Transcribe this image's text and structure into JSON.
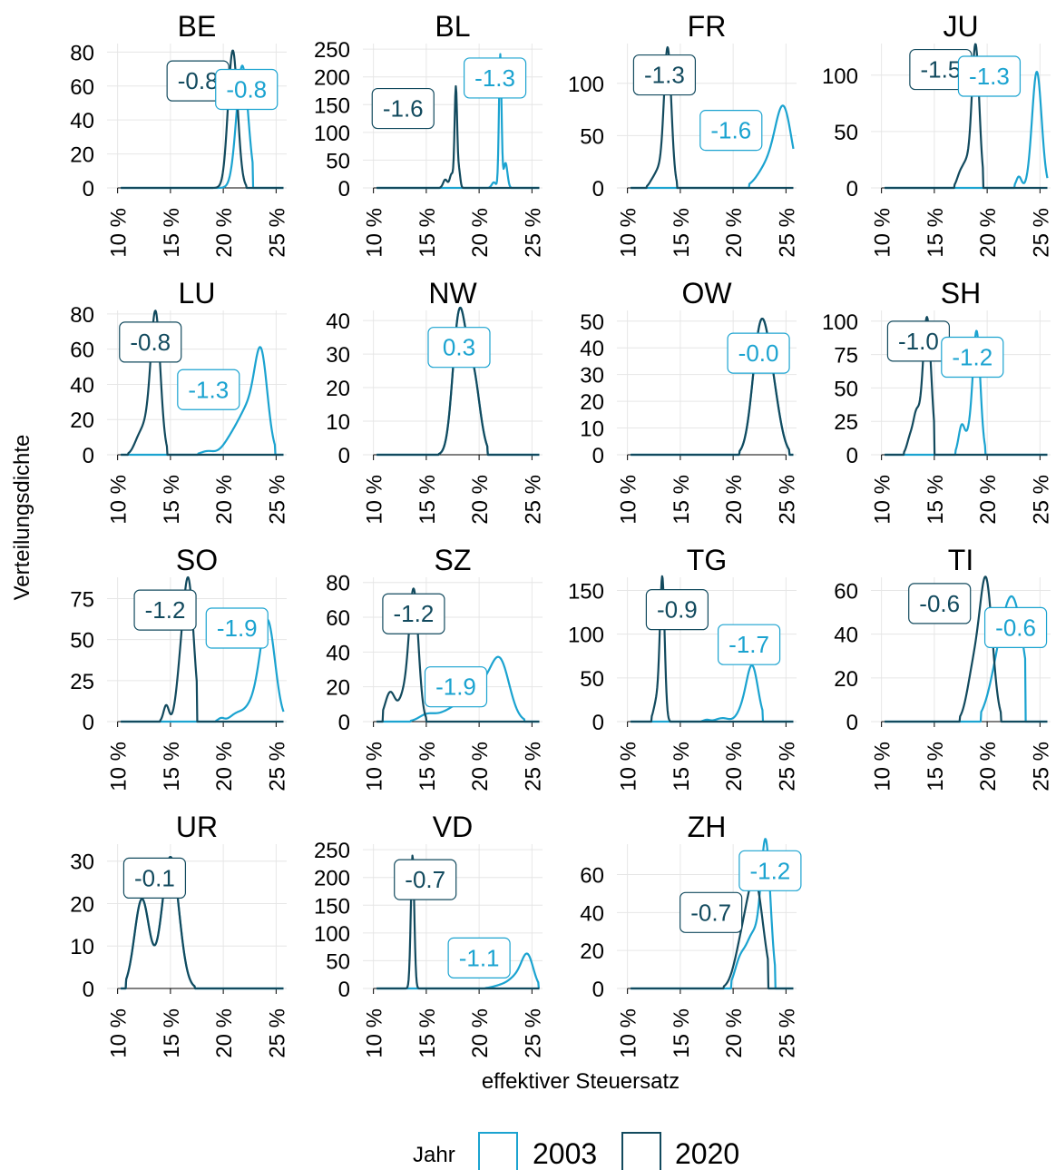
{
  "chart_data": {
    "type": "line",
    "subtype": "density-small-multiples",
    "xlabel": "effektiver Steuersatz",
    "ylabel": "Verteilungsdichte",
    "xlim": [
      9,
      26
    ],
    "x_ticks": [
      10,
      15,
      20,
      25
    ],
    "x_tick_labels": [
      "10 %",
      "15 %",
      "20 %",
      "25 %"
    ],
    "legend": {
      "title": "Jahr",
      "position": "bottom",
      "entries": [
        {
          "label": "2003",
          "color": "#1ba3d0"
        },
        {
          "label": "2020",
          "color": "#124a5e"
        }
      ]
    },
    "grid": true,
    "panels": [
      {
        "title": "BE",
        "yticks": [
          0,
          20,
          40,
          60,
          80
        ],
        "ymax": 85,
        "series": [
          {
            "year": "2003",
            "peaks": [
              [
                21.8,
                72,
                0.55
              ]
            ],
            "start": 19.4,
            "end": 22.8
          },
          {
            "year": "2020",
            "peaks": [
              [
                20.9,
                81,
                0.45
              ]
            ],
            "start": 19.0,
            "end": 22.2
          }
        ],
        "labels": [
          {
            "text": "-0.8",
            "year": "2020",
            "x": 17.6,
            "y": 63
          },
          {
            "text": "-0.8",
            "year": "2003",
            "x": 22.2,
            "y": 58
          }
        ]
      },
      {
        "title": "BL",
        "yticks": [
          0,
          50,
          100,
          150,
          200,
          250
        ],
        "ymax": 260,
        "series": [
          {
            "year": "2003",
            "peaks": [
              [
                22.0,
                240,
                0.12
              ],
              [
                22.5,
                45,
                0.18
              ],
              [
                21.4,
                10,
                0.2
              ]
            ],
            "start": 20.8,
            "end": 23.0
          },
          {
            "year": "2020",
            "peaks": [
              [
                17.8,
                180,
                0.12
              ],
              [
                17.4,
                25,
                0.18
              ],
              [
                16.8,
                15,
                0.2
              ],
              [
                18.1,
                30,
                0.12
              ]
            ],
            "start": 16.3,
            "end": 18.5
          }
        ],
        "labels": [
          {
            "text": "-1.6",
            "year": "2020",
            "x": 12.8,
            "y": 143
          },
          {
            "text": "-1.3",
            "year": "2003",
            "x": 21.5,
            "y": 198
          }
        ]
      },
      {
        "title": "FR",
        "yticks": [
          0,
          50,
          100
        ],
        "ymax": 138,
        "series": [
          {
            "year": "2003",
            "peaks": [
              [
                24.8,
                58,
                0.75
              ],
              [
                24.0,
                25,
                1.2
              ],
              [
                22.8,
                4,
                0.7
              ]
            ],
            "start": 21.5,
            "end": 25.8
          },
          {
            "year": "2020",
            "peaks": [
              [
                13.8,
                134,
                0.35
              ],
              [
                12.9,
                15,
                0.35
              ],
              [
                12.3,
                5,
                0.3
              ]
            ],
            "start": 11.8,
            "end": 14.7
          }
        ],
        "labels": [
          {
            "text": "-1.3",
            "year": "2020",
            "x": 13.5,
            "y": 108
          },
          {
            "text": "-1.6",
            "year": "2003",
            "x": 19.8,
            "y": 55
          }
        ]
      },
      {
        "title": "JU",
        "yticks": [
          0,
          50,
          100
        ],
        "ymax": 128,
        "series": [
          {
            "year": "2003",
            "peaks": [
              [
                24.7,
                103,
                0.45
              ],
              [
                23.0,
                10,
                0.25
              ]
            ],
            "start": 22.6,
            "end": 25.8
          },
          {
            "year": "2020",
            "peaks": [
              [
                18.9,
                127,
                0.35
              ],
              [
                18.0,
                20,
                0.35
              ],
              [
                17.4,
                10,
                0.3
              ]
            ],
            "start": 16.9,
            "end": 19.6
          }
        ],
        "labels": [
          {
            "text": "-1.5",
            "year": "2020",
            "x": 15.6,
            "y": 105
          },
          {
            "text": "-1.3",
            "year": "2003",
            "x": 20.2,
            "y": 99
          }
        ]
      },
      {
        "title": "LU",
        "yticks": [
          0,
          20,
          40,
          60,
          80
        ],
        "ymax": 82,
        "series": [
          {
            "year": "2003",
            "peaks": [
              [
                23.6,
                50,
                0.6
              ],
              [
                22.4,
                25,
                0.9
              ],
              [
                20.8,
                8,
                0.8
              ],
              [
                18.5,
                2,
                0.6
              ]
            ],
            "start": 17.6,
            "end": 24.9
          },
          {
            "year": "2020",
            "peaks": [
              [
                13.6,
                78,
                0.45
              ],
              [
                12.6,
                15,
                0.6
              ],
              [
                11.8,
                3,
                0.4
              ]
            ],
            "start": 11.0,
            "end": 14.7
          }
        ],
        "labels": [
          {
            "text": "-0.8",
            "year": "2020",
            "x": 13.1,
            "y": 64
          },
          {
            "text": "-1.3",
            "year": "2003",
            "x": 18.6,
            "y": 37
          }
        ]
      },
      {
        "title": "NW",
        "yticks": [
          0,
          10,
          20,
          30,
          40
        ],
        "ymax": 43,
        "series": [
          {
            "year": "2003",
            "peaks": [
              [
                18.1,
                40,
                0.6
              ],
              [
                19.4,
                24,
                0.65
              ]
            ],
            "start": 16.2,
            "end": 20.8
          },
          {
            "year": "2020",
            "peaks": [
              [
                18.1,
                40,
                0.6
              ],
              [
                19.4,
                24,
                0.65
              ]
            ],
            "start": 16.2,
            "end": 20.8
          }
        ],
        "labels": [
          {
            "text": "0.3",
            "year": "2003",
            "x": 18.1,
            "y": 32
          }
        ]
      },
      {
        "title": "OW",
        "yticks": [
          0,
          10,
          20,
          30,
          40,
          50
        ],
        "ymax": 54,
        "series": [
          {
            "year": "2003",
            "peaks": [
              [
                22.6,
                46,
                0.75
              ],
              [
                23.8,
                18,
                0.7
              ]
            ],
            "start": 20.6,
            "end": 25.3
          },
          {
            "year": "2020",
            "peaks": [
              [
                22.6,
                46,
                0.75
              ],
              [
                23.8,
                18,
                0.7
              ]
            ],
            "start": 20.6,
            "end": 25.3
          }
        ],
        "labels": [
          {
            "text": "-0.0",
            "year": "2003",
            "x": 22.4,
            "y": 38
          }
        ]
      },
      {
        "title": "SH",
        "yticks": [
          0,
          25,
          50,
          75,
          100
        ],
        "ymax": 108,
        "series": [
          {
            "year": "2003",
            "peaks": [
              [
                19.0,
                92,
                0.35
              ],
              [
                17.6,
                22,
                0.3
              ],
              [
                18.3,
                12,
                0.3
              ]
            ],
            "start": 17.0,
            "end": 19.8
          },
          {
            "year": "2020",
            "peaks": [
              [
                14.3,
                103,
                0.4
              ],
              [
                13.3,
                28,
                0.3
              ],
              [
                12.7,
                12,
                0.3
              ]
            ],
            "start": 12.1,
            "end": 15.0
          }
        ],
        "labels": [
          {
            "text": "-1.0",
            "year": "2020",
            "x": 13.5,
            "y": 85
          },
          {
            "text": "-1.2",
            "year": "2003",
            "x": 18.6,
            "y": 73
          }
        ]
      },
      {
        "title": "SO",
        "yticks": [
          0,
          25,
          50,
          75
        ],
        "ymax": 88,
        "series": [
          {
            "year": "2003",
            "peaks": [
              [
                24.2,
                60,
                0.7
              ],
              [
                22.8,
                10,
                0.8
              ],
              [
                21.2,
                4,
                0.6
              ],
              [
                19.8,
                2,
                0.3
              ]
            ],
            "start": 19.3,
            "end": 25.9
          },
          {
            "year": "2020",
            "peaks": [
              [
                16.7,
                85,
                0.5
              ],
              [
                15.9,
                20,
                0.4
              ],
              [
                14.6,
                10,
                0.25
              ]
            ],
            "start": 14.0,
            "end": 17.5
          }
        ],
        "labels": [
          {
            "text": "-1.2",
            "year": "2020",
            "x": 14.5,
            "y": 68
          },
          {
            "text": "-1.9",
            "year": "2003",
            "x": 21.3,
            "y": 57
          }
        ]
      },
      {
        "title": "SZ",
        "yticks": [
          0,
          20,
          40,
          60,
          80
        ],
        "ymax": 83,
        "series": [
          {
            "year": "2003",
            "peaks": [
              [
                22.0,
                31,
                0.9
              ],
              [
                20.0,
                18,
                1.3
              ],
              [
                17.5,
                6,
                1.5
              ],
              [
                15.0,
                3,
                0.7
              ]
            ],
            "start": 13.5,
            "end": 24.3
          },
          {
            "year": "2020",
            "peaks": [
              [
                13.8,
                76,
                0.45
              ],
              [
                11.6,
                17,
                0.5
              ],
              [
                12.8,
                12,
                0.4
              ]
            ],
            "start": 10.9,
            "end": 15.0
          }
        ],
        "labels": [
          {
            "text": "-1.2",
            "year": "2020",
            "x": 13.8,
            "y": 62
          },
          {
            "text": "-1.9",
            "year": "2003",
            "x": 17.8,
            "y": 20
          }
        ]
      },
      {
        "title": "TG",
        "yticks": [
          0,
          50,
          100,
          150
        ],
        "ymax": 165,
        "series": [
          {
            "year": "2003",
            "peaks": [
              [
                21.8,
                63,
                0.55
              ],
              [
                20.8,
                10,
                0.5
              ],
              [
                19.0,
                4,
                0.6
              ],
              [
                17.5,
                2,
                0.3
              ]
            ],
            "start": 17.0,
            "end": 22.8
          },
          {
            "year": "2020",
            "peaks": [
              [
                13.3,
                160,
                0.22
              ],
              [
                12.8,
                25,
                0.3
              ]
            ],
            "start": 12.3,
            "end": 14.0
          }
        ],
        "labels": [
          {
            "text": "-0.9",
            "year": "2020",
            "x": 14.7,
            "y": 128
          },
          {
            "text": "-1.7",
            "year": "2003",
            "x": 21.5,
            "y": 88
          }
        ]
      },
      {
        "title": "TI",
        "yticks": [
          0,
          20,
          40,
          60
        ],
        "ymax": 66,
        "series": [
          {
            "year": "2003",
            "peaks": [
              [
                22.5,
                52,
                1.0
              ],
              [
                21.0,
                18,
                0.9
              ]
            ],
            "start": 19.4,
            "end": 23.6
          },
          {
            "year": "2020",
            "peaks": [
              [
                19.9,
                63,
                0.6
              ],
              [
                18.7,
                22,
                0.6
              ]
            ],
            "start": 17.4,
            "end": 21.3
          }
        ],
        "labels": [
          {
            "text": "-0.6",
            "year": "2020",
            "x": 15.5,
            "y": 54
          },
          {
            "text": "-0.6",
            "year": "2003",
            "x": 22.7,
            "y": 43
          }
        ]
      },
      {
        "title": "UR",
        "yticks": [
          0,
          10,
          20,
          30
        ],
        "ymax": 34,
        "series": [
          {
            "year": "2003",
            "peaks": [
              [
                12.3,
                21,
                0.7
              ],
              [
                15.0,
                31,
                0.8
              ]
            ],
            "start": 10.8,
            "end": 17.3
          },
          {
            "year": "2020",
            "peaks": [
              [
                12.3,
                21,
                0.7
              ],
              [
                15.0,
                31,
                0.8
              ]
            ],
            "start": 10.8,
            "end": 17.3
          }
        ],
        "labels": [
          {
            "text": "-0.1",
            "year": "2020",
            "x": 13.5,
            "y": 26
          }
        ]
      },
      {
        "title": "VD",
        "yticks": [
          0,
          50,
          100,
          150,
          200,
          250
        ],
        "ymax": 260,
        "series": [
          {
            "year": "2003",
            "peaks": [
              [
                24.6,
                55,
                0.55
              ],
              [
                23.6,
                20,
                0.7
              ],
              [
                22.2,
                6,
                0.8
              ]
            ],
            "start": 20.6,
            "end": 25.6
          },
          {
            "year": "2020",
            "peaks": [
              [
                13.7,
                240,
                0.16
              ]
            ],
            "start": 13.1,
            "end": 14.3
          }
        ],
        "labels": [
          {
            "text": "-0.7",
            "year": "2020",
            "x": 14.9,
            "y": 196
          },
          {
            "text": "-1.1",
            "year": "2003",
            "x": 20.0,
            "y": 55
          }
        ]
      },
      {
        "title": "ZH",
        "yticks": [
          0,
          20,
          40,
          60
        ],
        "ymax": 76,
        "series": [
          {
            "year": "2003",
            "peaks": [
              [
                23.1,
                72,
                0.45
              ],
              [
                21.9,
                28,
                0.7
              ],
              [
                20.6,
                12,
                0.5
              ]
            ],
            "start": 19.8,
            "end": 24.0
          },
          {
            "year": "2020",
            "peaks": [
              [
                22.1,
                54,
                0.75
              ],
              [
                20.8,
                20,
                0.7
              ]
            ],
            "start": 19.1,
            "end": 23.3
          }
        ],
        "labels": [
          {
            "text": "-0.7",
            "year": "2020",
            "x": 17.9,
            "y": 40
          },
          {
            "text": "-1.2",
            "year": "2003",
            "x": 23.5,
            "y": 62
          }
        ]
      }
    ]
  }
}
